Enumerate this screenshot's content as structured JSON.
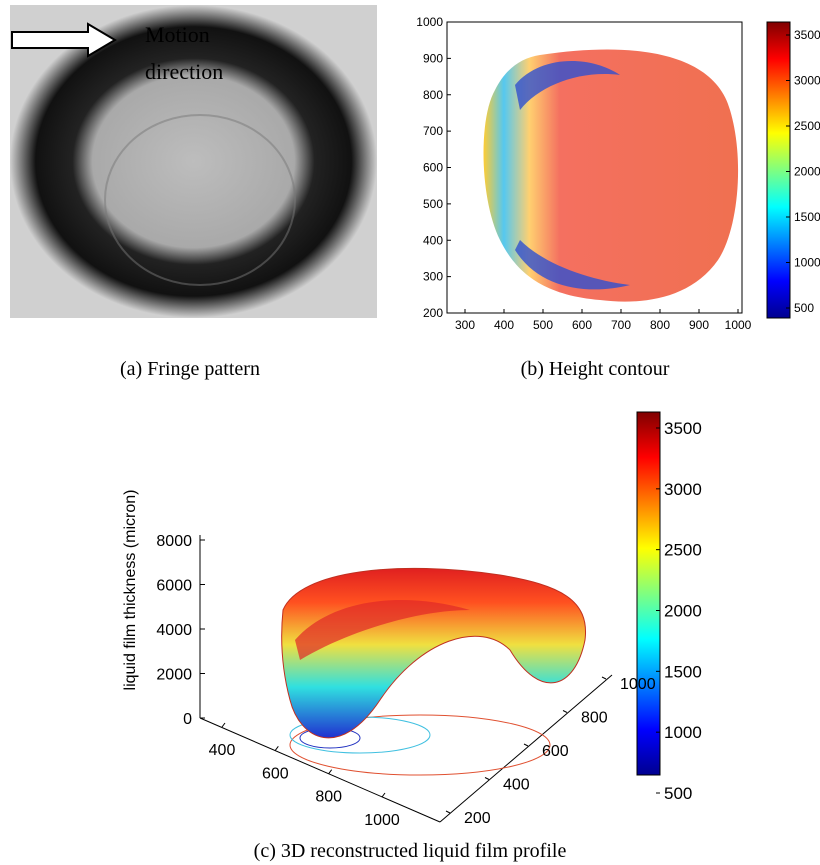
{
  "panels": [
    {
      "caption": "(a) Fringe pattern",
      "annotation": [
        "Motion",
        "direction"
      ]
    },
    {
      "caption": "(b) Height contour",
      "xticks": [
        300,
        400,
        500,
        600,
        700,
        800,
        900,
        1000
      ],
      "yticks": [
        200,
        300,
        400,
        500,
        600,
        700,
        800,
        900,
        1000
      ],
      "colorbar_ticks": [
        500,
        1000,
        1500,
        2000,
        2500,
        3000,
        3500
      ]
    },
    {
      "caption": "(c) 3D reconstructed liquid film profile",
      "z_label": "liquid film thickness (micron)",
      "zticks": [
        0,
        2000,
        4000,
        6000,
        8000
      ],
      "xticks": [
        400,
        600,
        800,
        1000
      ],
      "yticks": [
        200,
        400,
        600,
        800,
        1000
      ],
      "colorbar_ticks": [
        500,
        1000,
        1500,
        2000,
        2500,
        3000,
        3500
      ]
    }
  ]
}
